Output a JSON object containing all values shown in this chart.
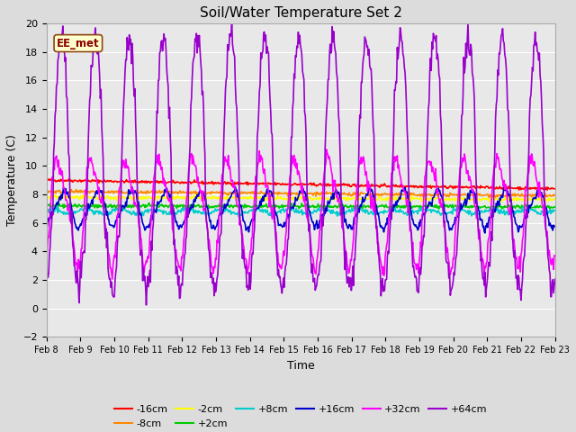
{
  "title": "Soil/Water Temperature Set 2",
  "xlabel": "Time",
  "ylabel": "Temperature (C)",
  "ylim": [
    -2,
    20
  ],
  "xlim": [
    0,
    15
  ],
  "background_color": "#dcdcdc",
  "plot_bg_color": "#e8e8e8",
  "annotation": "EE_met",
  "x_tick_labels": [
    "Feb 8",
    "Feb 9",
    "Feb 10",
    "Feb 11",
    "Feb 12",
    "Feb 13",
    "Feb 14",
    "Feb 15",
    "Feb 16",
    "Feb 17",
    "Feb 18",
    "Feb 19",
    "Feb 20",
    "Feb 21",
    "Feb 22",
    "Feb 23"
  ],
  "colors": {
    "-16cm": "#ff0000",
    "-8cm": "#ff8800",
    "-2cm": "#ffff00",
    "+2cm": "#00cc00",
    "+8cm": "#00cccc",
    "+16cm": "#0000cc",
    "+32cm": "#ff00ff",
    "+64cm": "#9900cc"
  }
}
